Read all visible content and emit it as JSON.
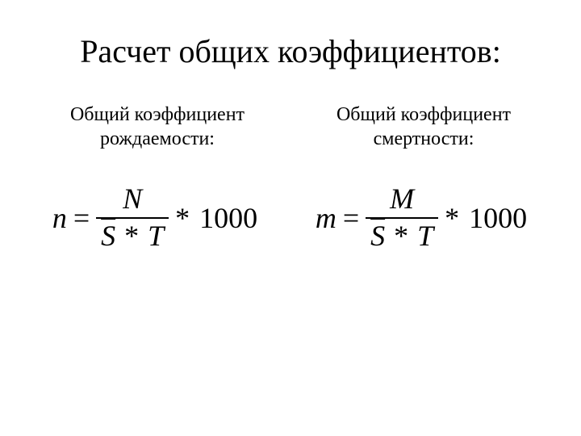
{
  "slide": {
    "title": "Расчет общих коэффициентов:",
    "background_color": "#ffffff",
    "text_color": "#000000",
    "title_fontsize_pt": 40,
    "subhead_fontsize_pt": 24,
    "formula_fontsize_pt": 36,
    "font_family": "Times New Roman"
  },
  "left": {
    "heading_line1": "Общий коэффициент",
    "heading_line2": "рождаемости:",
    "formula": {
      "lhs": "n",
      "numerator": "N",
      "denom_sbar": "S",
      "denom_op": "*",
      "denom_t": "T",
      "multiply": "*",
      "constant": "1000"
    }
  },
  "right": {
    "heading_line1": "Общий коэффициент",
    "heading_line2": "смертности:",
    "formula": {
      "lhs": "m",
      "numerator": "M",
      "denom_sbar": "S",
      "denom_op": "*",
      "denom_t": "T",
      "multiply": "*",
      "constant": "1000"
    }
  }
}
